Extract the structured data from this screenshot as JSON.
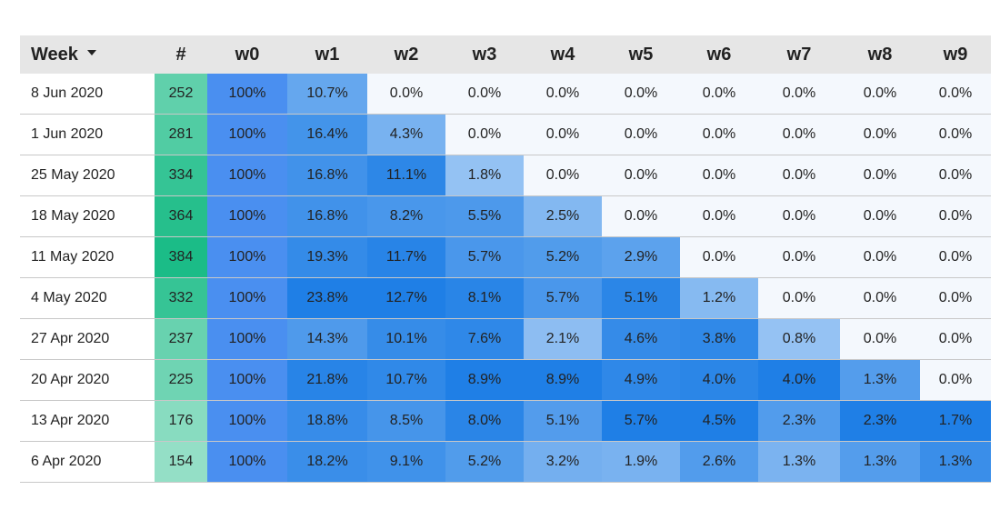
{
  "chart_data": {
    "type": "heatmap",
    "headers": {
      "week": "Week",
      "count": "#",
      "weeks": [
        "w0",
        "w1",
        "w2",
        "w3",
        "w4",
        "w5",
        "w6",
        "w7",
        "w8",
        "w9"
      ]
    },
    "rows": [
      {
        "week": "8 Jun 2020",
        "count": 252,
        "values": [
          100,
          10.7,
          0.0,
          0.0,
          0.0,
          0.0,
          0.0,
          0.0,
          0.0,
          0.0
        ]
      },
      {
        "week": "1 Jun 2020",
        "count": 281,
        "values": [
          100,
          16.4,
          4.3,
          0.0,
          0.0,
          0.0,
          0.0,
          0.0,
          0.0,
          0.0
        ]
      },
      {
        "week": "25 May 2020",
        "count": 334,
        "values": [
          100,
          16.8,
          11.1,
          1.8,
          0.0,
          0.0,
          0.0,
          0.0,
          0.0,
          0.0
        ]
      },
      {
        "week": "18 May 2020",
        "count": 364,
        "values": [
          100,
          16.8,
          8.2,
          5.5,
          2.5,
          0.0,
          0.0,
          0.0,
          0.0,
          0.0
        ]
      },
      {
        "week": "11 May 2020",
        "count": 384,
        "values": [
          100,
          19.3,
          11.7,
          5.7,
          5.2,
          2.9,
          0.0,
          0.0,
          0.0,
          0.0
        ]
      },
      {
        "week": "4 May 2020",
        "count": 332,
        "values": [
          100,
          23.8,
          12.7,
          8.1,
          5.7,
          5.1,
          1.2,
          0.0,
          0.0,
          0.0
        ]
      },
      {
        "week": "27 Apr 2020",
        "count": 237,
        "values": [
          100,
          14.3,
          10.1,
          7.6,
          2.1,
          4.6,
          3.8,
          0.8,
          0.0,
          0.0
        ]
      },
      {
        "week": "20 Apr 2020",
        "count": 225,
        "values": [
          100,
          21.8,
          10.7,
          8.9,
          8.9,
          4.9,
          4.0,
          4.0,
          1.3,
          0.0
        ]
      },
      {
        "week": "13 Apr 2020",
        "count": 176,
        "values": [
          100,
          18.8,
          8.5,
          8.0,
          5.1,
          5.7,
          4.5,
          2.3,
          2.3,
          1.7
        ]
      },
      {
        "week": "6 Apr 2020",
        "count": 154,
        "values": [
          100,
          18.2,
          9.1,
          5.2,
          3.2,
          1.9,
          2.6,
          1.3,
          1.3,
          1.3
        ]
      }
    ],
    "value_suffix": "%",
    "colors": {
      "count_low": "#94dfc6",
      "count_high": "#1bbc87",
      "w0": "#4a8ff0",
      "value_zero": "#f4f8fd",
      "value_high": "#1f7fe6"
    }
  }
}
